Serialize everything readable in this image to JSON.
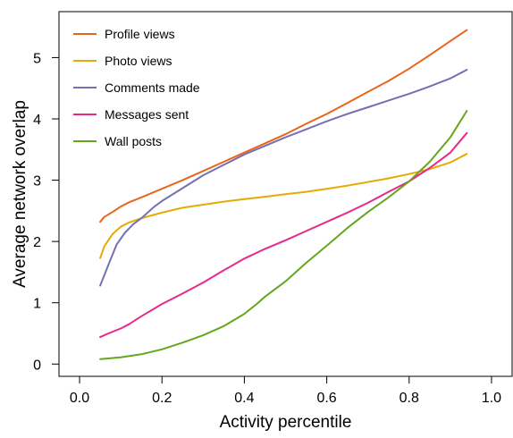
{
  "chart_data": {
    "type": "line",
    "title": "",
    "xlabel": "Activity percentile",
    "ylabel": "Average network overlap",
    "xlim": [
      -0.05,
      1.05
    ],
    "ylim": [
      -0.2,
      5.75
    ],
    "xticks": [
      0.0,
      0.2,
      0.4,
      0.6,
      0.8,
      1.0
    ],
    "xtick_labels": [
      "0.0",
      "0.2",
      "0.4",
      "0.6",
      "0.8",
      "1.0"
    ],
    "yticks": [
      0,
      1,
      2,
      3,
      4,
      5
    ],
    "ytick_labels": [
      "0",
      "1",
      "2",
      "3",
      "4",
      "5"
    ],
    "grid": false,
    "legend_position": "top-left",
    "series": [
      {
        "name": "Profile views",
        "color": "#e8661a",
        "x": [
          0.05,
          0.06,
          0.08,
          0.1,
          0.12,
          0.15,
          0.2,
          0.25,
          0.3,
          0.35,
          0.4,
          0.45,
          0.5,
          0.55,
          0.6,
          0.65,
          0.7,
          0.75,
          0.8,
          0.85,
          0.9,
          0.94
        ],
        "y": [
          2.32,
          2.4,
          2.48,
          2.57,
          2.64,
          2.72,
          2.86,
          3.0,
          3.15,
          3.3,
          3.45,
          3.6,
          3.75,
          3.92,
          4.08,
          4.26,
          4.44,
          4.62,
          4.82,
          5.04,
          5.27,
          5.45
        ]
      },
      {
        "name": "Photo views",
        "color": "#e6ab02",
        "x": [
          0.05,
          0.06,
          0.08,
          0.1,
          0.12,
          0.15,
          0.2,
          0.25,
          0.3,
          0.35,
          0.4,
          0.45,
          0.5,
          0.55,
          0.6,
          0.65,
          0.7,
          0.75,
          0.8,
          0.85,
          0.9,
          0.94
        ],
        "y": [
          1.73,
          1.92,
          2.12,
          2.24,
          2.31,
          2.38,
          2.47,
          2.55,
          2.6,
          2.65,
          2.69,
          2.73,
          2.77,
          2.81,
          2.86,
          2.91,
          2.97,
          3.03,
          3.1,
          3.18,
          3.29,
          3.43
        ]
      },
      {
        "name": "Comments made",
        "color": "#7570b3",
        "x": [
          0.05,
          0.07,
          0.09,
          0.11,
          0.13,
          0.15,
          0.18,
          0.2,
          0.25,
          0.3,
          0.35,
          0.4,
          0.45,
          0.5,
          0.55,
          0.6,
          0.65,
          0.7,
          0.75,
          0.8,
          0.85,
          0.9,
          0.94
        ],
        "y": [
          1.28,
          1.62,
          1.95,
          2.14,
          2.28,
          2.38,
          2.56,
          2.66,
          2.87,
          3.08,
          3.25,
          3.42,
          3.56,
          3.7,
          3.83,
          3.96,
          4.08,
          4.19,
          4.3,
          4.41,
          4.53,
          4.66,
          4.8
        ]
      },
      {
        "name": "Messages sent",
        "color": "#e7298a",
        "x": [
          0.05,
          0.07,
          0.1,
          0.12,
          0.15,
          0.2,
          0.25,
          0.3,
          0.35,
          0.4,
          0.45,
          0.5,
          0.55,
          0.6,
          0.65,
          0.7,
          0.75,
          0.8,
          0.85,
          0.9,
          0.94
        ],
        "y": [
          0.44,
          0.5,
          0.58,
          0.65,
          0.78,
          0.98,
          1.15,
          1.33,
          1.53,
          1.72,
          1.88,
          2.02,
          2.17,
          2.32,
          2.47,
          2.63,
          2.81,
          2.98,
          3.2,
          3.45,
          3.77
        ]
      },
      {
        "name": "Wall posts",
        "color": "#66a61e",
        "x": [
          0.05,
          0.1,
          0.15,
          0.2,
          0.25,
          0.3,
          0.35,
          0.4,
          0.43,
          0.45,
          0.5,
          0.55,
          0.6,
          0.65,
          0.7,
          0.75,
          0.8,
          0.85,
          0.9,
          0.94
        ],
        "y": [
          0.08,
          0.11,
          0.16,
          0.24,
          0.35,
          0.47,
          0.62,
          0.82,
          0.98,
          1.1,
          1.35,
          1.65,
          1.93,
          2.22,
          2.48,
          2.72,
          2.98,
          3.3,
          3.7,
          4.13
        ]
      }
    ]
  }
}
